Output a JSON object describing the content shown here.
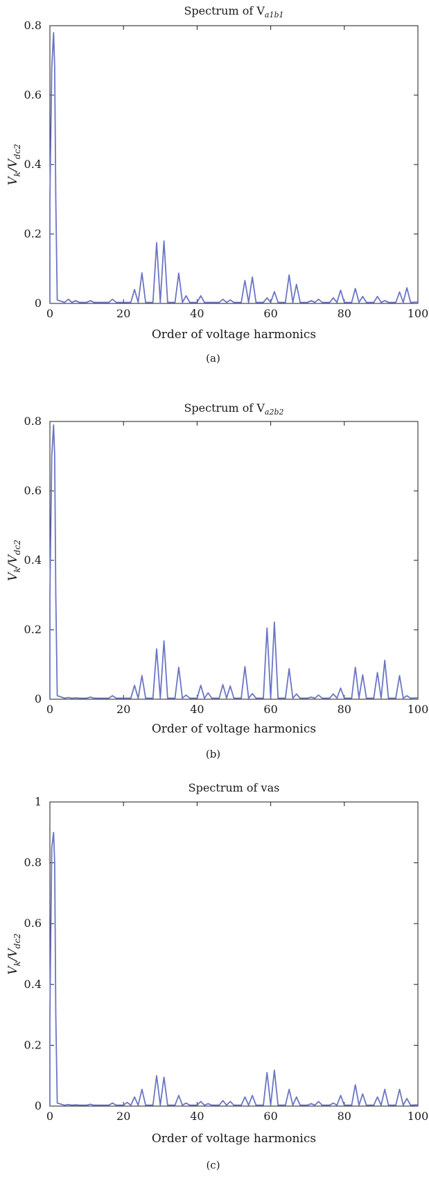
{
  "chart_data": [
    {
      "type": "line",
      "panel_label": "(a)",
      "title": "Spectrum of V",
      "title_subscript": "a1b1",
      "xlabel": "Order of voltage harmonics",
      "ylabel": {
        "main": "V",
        "sub1": "k",
        "mid": "/V",
        "sub2": "dc2"
      },
      "xlim": [
        0,
        100
      ],
      "ylim": [
        0,
        0.8
      ],
      "xticks": [
        0,
        20,
        40,
        60,
        80,
        100
      ],
      "yticks": [
        0,
        0.2,
        0.4,
        0.6,
        0.8
      ],
      "grid": false,
      "color": "#6b75c4",
      "series": [
        {
          "x": [
            0,
            0.5,
            1,
            1.3,
            1.6,
            2,
            5,
            7,
            11,
            17,
            23,
            25,
            29,
            31,
            35,
            37,
            41,
            47,
            49,
            53,
            55,
            59,
            61,
            65,
            67,
            71,
            73,
            77,
            79,
            83,
            85,
            89,
            91,
            95,
            97
          ],
          "values": [
            0.3,
            0.68,
            0.78,
            0.68,
            0.3,
            0.01,
            0.012,
            0.008,
            0.008,
            0.012,
            0.04,
            0.088,
            0.175,
            0.18,
            0.087,
            0.022,
            0.022,
            0.012,
            0.01,
            0.066,
            0.076,
            0.016,
            0.034,
            0.082,
            0.055,
            0.008,
            0.012,
            0.016,
            0.038,
            0.043,
            0.02,
            0.02,
            0.008,
            0.033,
            0.045
          ]
        }
      ]
    },
    {
      "type": "line",
      "panel_label": "(b)",
      "title": "Spectrum of V",
      "title_subscript": "a2b2",
      "xlabel": "Order of voltage harmonics",
      "ylabel": {
        "main": "V",
        "sub1": "k",
        "mid": "/V",
        "sub2": "dc2"
      },
      "xlim": [
        0,
        100
      ],
      "ylim": [
        0,
        0.8
      ],
      "xticks": [
        0,
        20,
        40,
        60,
        80,
        100
      ],
      "yticks": [
        0,
        0.2,
        0.4,
        0.6,
        0.8
      ],
      "grid": false,
      "color": "#6b75c4",
      "series": [
        {
          "x": [
            0,
            0.5,
            1,
            1.3,
            1.6,
            2,
            5,
            7,
            11,
            17,
            23,
            25,
            29,
            31,
            35,
            37,
            41,
            43,
            47,
            49,
            53,
            55,
            59,
            61,
            65,
            67,
            71,
            73,
            77,
            79,
            83,
            85,
            89,
            91,
            95,
            97
          ],
          "values": [
            0.3,
            0.7,
            0.79,
            0.7,
            0.3,
            0.01,
            0.005,
            0.004,
            0.006,
            0.01,
            0.04,
            0.068,
            0.145,
            0.168,
            0.092,
            0.012,
            0.04,
            0.018,
            0.042,
            0.038,
            0.094,
            0.016,
            0.205,
            0.222,
            0.088,
            0.015,
            0.006,
            0.012,
            0.015,
            0.032,
            0.092,
            0.07,
            0.077,
            0.112,
            0.068,
            0.01
          ]
        }
      ]
    },
    {
      "type": "line",
      "panel_label": "(c)",
      "title": "Spectrum of vas",
      "title_subscript": "",
      "xlabel": "Order of voltage harmonics",
      "ylabel": {
        "main": "V",
        "sub1": "k",
        "mid": "/V",
        "sub2": "dc2"
      },
      "xlim": [
        0,
        100
      ],
      "ylim": [
        0,
        1
      ],
      "xticks": [
        0,
        20,
        40,
        60,
        80,
        100
      ],
      "yticks": [
        0,
        0.2,
        0.4,
        0.6,
        0.8,
        1
      ],
      "grid": false,
      "color": "#6b75c4",
      "series": [
        {
          "x": [
            0,
            0.5,
            1,
            1.3,
            1.6,
            2,
            5,
            7,
            11,
            17,
            21,
            23,
            25,
            29,
            31,
            35,
            37,
            41,
            43,
            47,
            49,
            53,
            55,
            59,
            61,
            65,
            67,
            71,
            73,
            77,
            79,
            83,
            85,
            89,
            91,
            95,
            97
          ],
          "values": [
            0.3,
            0.85,
            0.9,
            0.8,
            0.3,
            0.01,
            0.005,
            0.004,
            0.006,
            0.01,
            0.012,
            0.03,
            0.055,
            0.1,
            0.095,
            0.035,
            0.01,
            0.015,
            0.008,
            0.018,
            0.015,
            0.03,
            0.035,
            0.11,
            0.118,
            0.055,
            0.03,
            0.008,
            0.015,
            0.01,
            0.035,
            0.07,
            0.04,
            0.03,
            0.055,
            0.055,
            0.025
          ]
        }
      ]
    }
  ]
}
